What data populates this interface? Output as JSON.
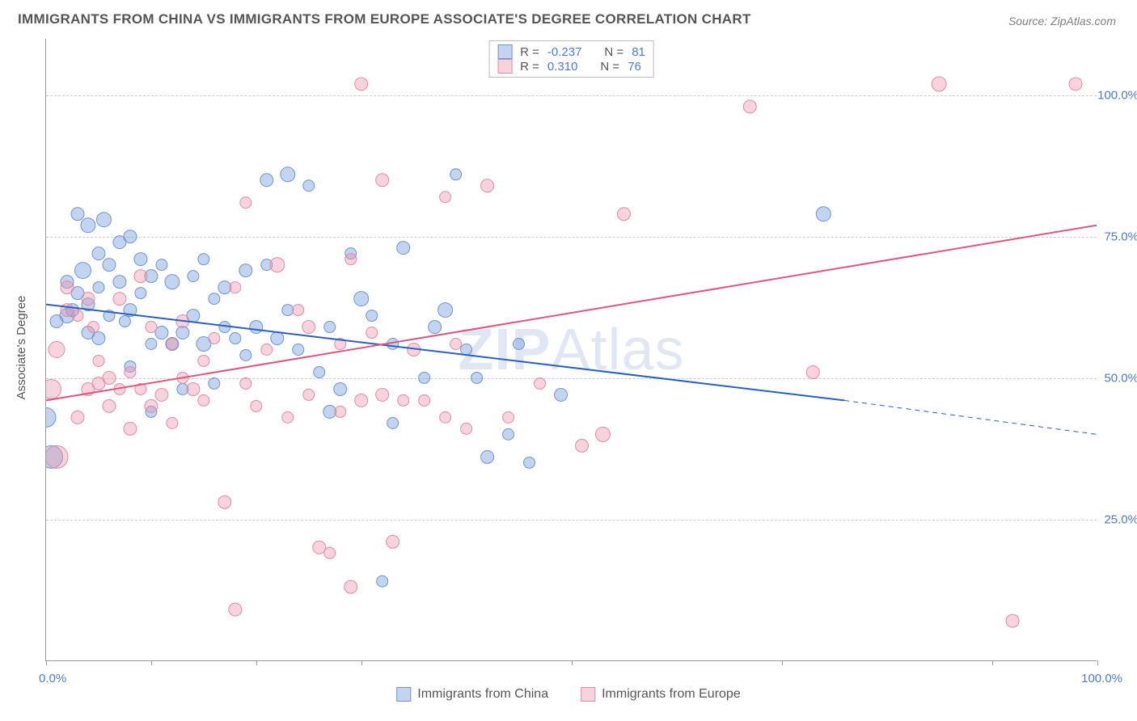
{
  "title": "IMMIGRANTS FROM CHINA VS IMMIGRANTS FROM EUROPE ASSOCIATE'S DEGREE CORRELATION CHART",
  "source": "Source: ZipAtlas.com",
  "watermark": {
    "part1": "ZIP",
    "part2": "Atlas"
  },
  "y_axis_label": "Associate's Degree",
  "legend_top": {
    "series": [
      {
        "r_label": "R =",
        "r": "-0.237",
        "n_label": "N =",
        "n": "81"
      },
      {
        "r_label": "R =",
        "r": "0.310",
        "n_label": "N =",
        "n": "76"
      }
    ]
  },
  "legend_bottom": {
    "series1": "Immigrants from China",
    "series2": "Immigrants from Europe"
  },
  "chart": {
    "type": "scatter",
    "xlim": [
      0,
      100
    ],
    "ylim": [
      0,
      110
    ],
    "x_ticks": [
      0,
      10,
      20,
      30,
      50,
      70,
      90,
      100
    ],
    "x_tick_labels": {
      "0": "0.0%",
      "100": "100.0%"
    },
    "y_grid": [
      25,
      50,
      75,
      100
    ],
    "y_tick_labels": {
      "25": "25.0%",
      "50": "50.0%",
      "75": "75.0%",
      "100": "100.0%"
    },
    "background_color": "#ffffff",
    "grid_color": "#cccccc",
    "axis_color": "#999999",
    "label_color": "#4a7bd0",
    "series": [
      {
        "name": "china",
        "color_fill": "rgba(120,160,220,0.45)",
        "color_stroke": "#6a96d4",
        "trend": {
          "color": "#2a5fc4",
          "x1": 0,
          "y1": 63,
          "x2_solid": 76,
          "y2_solid": 46,
          "x2": 100,
          "y2": 40,
          "width": 2
        },
        "points": [
          [
            0,
            43,
            12
          ],
          [
            0.5,
            36,
            14
          ],
          [
            1,
            60,
            8
          ],
          [
            2,
            61,
            9
          ],
          [
            2,
            67,
            8
          ],
          [
            2.5,
            62,
            8
          ],
          [
            3,
            79,
            8
          ],
          [
            3,
            65,
            8
          ],
          [
            3.5,
            69,
            10
          ],
          [
            4,
            63,
            8
          ],
          [
            4,
            77,
            9
          ],
          [
            4,
            58,
            8
          ],
          [
            5,
            66,
            7
          ],
          [
            5,
            72,
            8
          ],
          [
            5,
            57,
            8
          ],
          [
            5.5,
            78,
            9
          ],
          [
            6,
            70,
            8
          ],
          [
            6,
            61,
            7
          ],
          [
            7,
            67,
            8
          ],
          [
            7,
            74,
            8
          ],
          [
            7.5,
            60,
            7
          ],
          [
            8,
            52,
            7
          ],
          [
            8,
            62,
            8
          ],
          [
            8,
            75,
            8
          ],
          [
            9,
            71,
            8
          ],
          [
            9,
            65,
            7
          ],
          [
            10,
            68,
            8
          ],
          [
            10,
            56,
            7
          ],
          [
            10,
            44,
            7
          ],
          [
            11,
            58,
            8
          ],
          [
            11,
            70,
            7
          ],
          [
            12,
            67,
            9
          ],
          [
            12,
            56,
            8
          ],
          [
            13,
            48,
            7
          ],
          [
            13,
            58,
            8
          ],
          [
            14,
            68,
            7
          ],
          [
            14,
            61,
            8
          ],
          [
            15,
            71,
            7
          ],
          [
            15,
            56,
            9
          ],
          [
            16,
            64,
            7
          ],
          [
            16,
            49,
            7
          ],
          [
            17,
            66,
            8
          ],
          [
            17,
            59,
            7
          ],
          [
            18,
            57,
            7
          ],
          [
            19,
            54,
            7
          ],
          [
            19,
            69,
            8
          ],
          [
            20,
            59,
            8
          ],
          [
            21,
            70,
            7
          ],
          [
            21,
            85,
            8
          ],
          [
            22,
            57,
            8
          ],
          [
            23,
            62,
            7
          ],
          [
            23,
            86,
            9
          ],
          [
            24,
            55,
            7
          ],
          [
            25,
            84,
            7
          ],
          [
            26,
            51,
            7
          ],
          [
            27,
            44,
            8
          ],
          [
            27,
            59,
            7
          ],
          [
            28,
            48,
            8
          ],
          [
            29,
            72,
            7
          ],
          [
            30,
            64,
            9
          ],
          [
            31,
            61,
            7
          ],
          [
            32,
            14,
            7
          ],
          [
            33,
            42,
            7
          ],
          [
            33,
            56,
            7
          ],
          [
            34,
            73,
            8
          ],
          [
            36,
            50,
            7
          ],
          [
            37,
            59,
            8
          ],
          [
            38,
            62,
            9
          ],
          [
            39,
            86,
            7
          ],
          [
            40,
            55,
            7
          ],
          [
            41,
            50,
            7
          ],
          [
            42,
            36,
            8
          ],
          [
            44,
            40,
            7
          ],
          [
            45,
            56,
            7
          ],
          [
            46,
            35,
            7
          ],
          [
            49,
            47,
            8
          ],
          [
            74,
            79,
            9
          ]
        ]
      },
      {
        "name": "europe",
        "color_fill": "rgba(235,150,175,0.42)",
        "color_stroke": "#e38aa3",
        "trend": {
          "color": "#e0577e",
          "x1": 0,
          "y1": 46,
          "x2_solid": 100,
          "y2_solid": 77,
          "x2": 100,
          "y2": 77,
          "width": 2
        },
        "points": [
          [
            0.5,
            48,
            12
          ],
          [
            1,
            55,
            10
          ],
          [
            1,
            36,
            14
          ],
          [
            2,
            62,
            8
          ],
          [
            2,
            66,
            8
          ],
          [
            3,
            43,
            8
          ],
          [
            3,
            61,
            7
          ],
          [
            4,
            48,
            8
          ],
          [
            4,
            64,
            8
          ],
          [
            4.5,
            59,
            7
          ],
          [
            5,
            49,
            8
          ],
          [
            5,
            53,
            7
          ],
          [
            6,
            50,
            8
          ],
          [
            6,
            45,
            8
          ],
          [
            7,
            48,
            7
          ],
          [
            7,
            64,
            8
          ],
          [
            8,
            41,
            8
          ],
          [
            8,
            51,
            7
          ],
          [
            9,
            68,
            8
          ],
          [
            9,
            48,
            7
          ],
          [
            10,
            59,
            7
          ],
          [
            10,
            45,
            8
          ],
          [
            11,
            47,
            8
          ],
          [
            12,
            56,
            7
          ],
          [
            12,
            42,
            7
          ],
          [
            13,
            60,
            8
          ],
          [
            13,
            50,
            7
          ],
          [
            14,
            48,
            8
          ],
          [
            15,
            53,
            7
          ],
          [
            15,
            46,
            7
          ],
          [
            16,
            57,
            7
          ],
          [
            17,
            28,
            8
          ],
          [
            18,
            66,
            7
          ],
          [
            18,
            9,
            8
          ],
          [
            19,
            49,
            7
          ],
          [
            19,
            81,
            7
          ],
          [
            20,
            45,
            7
          ],
          [
            21,
            55,
            7
          ],
          [
            22,
            70,
            9
          ],
          [
            23,
            43,
            7
          ],
          [
            24,
            62,
            7
          ],
          [
            25,
            47,
            7
          ],
          [
            25,
            59,
            8
          ],
          [
            26,
            20,
            8
          ],
          [
            27,
            19,
            7
          ],
          [
            28,
            56,
            7
          ],
          [
            28,
            44,
            7
          ],
          [
            29,
            71,
            7
          ],
          [
            29,
            13,
            8
          ],
          [
            30,
            46,
            8
          ],
          [
            30,
            102,
            8
          ],
          [
            31,
            58,
            7
          ],
          [
            32,
            47,
            8
          ],
          [
            32,
            85,
            8
          ],
          [
            33,
            21,
            8
          ],
          [
            34,
            46,
            7
          ],
          [
            35,
            55,
            8
          ],
          [
            36,
            46,
            7
          ],
          [
            38,
            82,
            7
          ],
          [
            38,
            43,
            7
          ],
          [
            39,
            56,
            7
          ],
          [
            40,
            41,
            7
          ],
          [
            42,
            84,
            8
          ],
          [
            44,
            43,
            7
          ],
          [
            47,
            49,
            7
          ],
          [
            51,
            38,
            8
          ],
          [
            53,
            40,
            9
          ],
          [
            55,
            79,
            8
          ],
          [
            67,
            98,
            8
          ],
          [
            73,
            51,
            8
          ],
          [
            85,
            102,
            9
          ],
          [
            92,
            7,
            8
          ],
          [
            98,
            102,
            8
          ]
        ]
      }
    ]
  }
}
